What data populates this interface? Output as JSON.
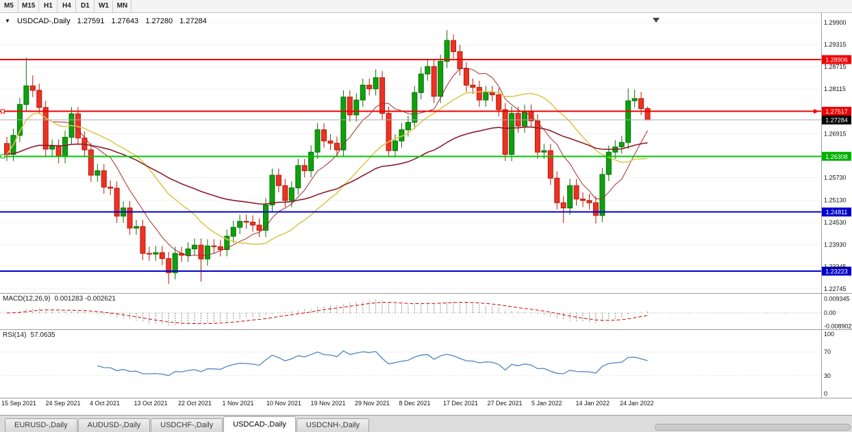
{
  "toolbar": {
    "timeframes": [
      "M5",
      "M15",
      "H1",
      "H4",
      "D1",
      "W1",
      "MN"
    ]
  },
  "chart": {
    "symbol_label": "USDCAD-,Daily",
    "ohlc": {
      "open": "1.27591",
      "high": "1.27643",
      "low": "1.27280",
      "close": "1.27284"
    }
  },
  "indicators": {
    "macd": {
      "label": "MACD(12,26,9)",
      "values": "0.001283 -0.002621"
    },
    "rsi": {
      "label": "RSI(14)",
      "value": "57.0635"
    }
  },
  "tabs": [
    {
      "label": "EURUSD-,Daily",
      "active": false
    },
    {
      "label": "AUDUSD-,Daily",
      "active": false
    },
    {
      "label": "USDCHF-,Daily",
      "active": false
    },
    {
      "label": "USDCAD-,Daily",
      "active": true
    },
    {
      "label": "USDCNH-,Daily",
      "active": false
    }
  ],
  "colors": {
    "candle_up": "#0FA00F",
    "candle_up_stroke": "#067006",
    "candle_down": "#EE3124",
    "candle_down_stroke": "#B51909",
    "macd_hist": "#8A8A8A",
    "macd_signal": "#CC0000",
    "rsi_line": "#4D84C4",
    "separator": "#9C9C9C",
    "gridline": "#F2F2F2"
  },
  "chart_data": {
    "type": "candlestick",
    "symbol": "USDCAD-",
    "timeframe": "Daily",
    "ohlc_fields": [
      "open",
      "high",
      "low",
      "close"
    ],
    "y_range": [
      1.2264,
      1.3016
    ],
    "ohlc": [
      [
        1.2665,
        1.2683,
        1.2618,
        1.2636
      ],
      [
        1.2636,
        1.2705,
        1.2618,
        1.2687
      ],
      [
        1.2687,
        1.2788,
        1.2669,
        1.277
      ],
      [
        1.277,
        1.2896,
        1.2752,
        1.282
      ],
      [
        1.282,
        1.2848,
        1.279,
        1.2808
      ],
      [
        1.2808,
        1.2826,
        1.2744,
        1.2762
      ],
      [
        1.2762,
        1.278,
        1.2632,
        1.265
      ],
      [
        1.265,
        1.2676,
        1.2632,
        1.2658
      ],
      [
        1.2658,
        1.2676,
        1.2612,
        1.263
      ],
      [
        1.263,
        1.27,
        1.2612,
        1.2682
      ],
      [
        1.2682,
        1.2763,
        1.2664,
        1.2745
      ],
      [
        1.2745,
        1.2763,
        1.2662,
        1.268
      ],
      [
        1.268,
        1.2698,
        1.263,
        1.2648
      ],
      [
        1.2648,
        1.2666,
        1.2562,
        1.258
      ],
      [
        1.258,
        1.261,
        1.2562,
        1.2592
      ],
      [
        1.2592,
        1.261,
        1.253,
        1.2548
      ],
      [
        1.2548,
        1.2566,
        1.2527,
        1.2545
      ],
      [
        1.2545,
        1.2563,
        1.2452,
        1.247
      ],
      [
        1.247,
        1.251,
        1.2452,
        1.2492
      ],
      [
        1.2492,
        1.251,
        1.242,
        1.2438
      ],
      [
        1.2438,
        1.246,
        1.242,
        1.2442
      ],
      [
        1.2442,
        1.246,
        1.2352,
        1.237
      ],
      [
        1.237,
        1.2388,
        1.235,
        1.2368
      ],
      [
        1.2368,
        1.239,
        1.235,
        1.2372
      ],
      [
        1.2372,
        1.239,
        1.2338,
        1.2356
      ],
      [
        1.2356,
        1.2374,
        1.2288,
        1.2318
      ],
      [
        1.2318,
        1.2388,
        1.23,
        1.237
      ],
      [
        1.237,
        1.2388,
        1.2347,
        1.2365
      ],
      [
        1.2365,
        1.24,
        1.2347,
        1.2382
      ],
      [
        1.2382,
        1.241,
        1.2364,
        1.2392
      ],
      [
        1.2392,
        1.241,
        1.2294,
        1.2355
      ],
      [
        1.2355,
        1.2408,
        1.2337,
        1.239
      ],
      [
        1.239,
        1.2408,
        1.237,
        1.2388
      ],
      [
        1.2388,
        1.2406,
        1.2362,
        1.238
      ],
      [
        1.238,
        1.2434,
        1.2362,
        1.2416
      ],
      [
        1.2416,
        1.2458,
        1.2398,
        1.244
      ],
      [
        1.244,
        1.2474,
        1.2422,
        1.2456
      ],
      [
        1.2456,
        1.2474,
        1.2436,
        1.2454
      ],
      [
        1.2454,
        1.2472,
        1.2428,
        1.2446
      ],
      [
        1.2446,
        1.2464,
        1.2414,
        1.2432
      ],
      [
        1.2432,
        1.2518,
        1.2414,
        1.25
      ],
      [
        1.25,
        1.2598,
        1.2482,
        1.258
      ],
      [
        1.258,
        1.2598,
        1.2534,
        1.2552
      ],
      [
        1.2552,
        1.257,
        1.2494,
        1.2512
      ],
      [
        1.2512,
        1.2564,
        1.2494,
        1.2546
      ],
      [
        1.2546,
        1.2624,
        1.2528,
        1.2606
      ],
      [
        1.2606,
        1.2624,
        1.2574,
        1.2592
      ],
      [
        1.2592,
        1.266,
        1.2574,
        1.2642
      ],
      [
        1.2642,
        1.272,
        1.2624,
        1.2702
      ],
      [
        1.2702,
        1.272,
        1.2654,
        1.2672
      ],
      [
        1.2672,
        1.269,
        1.2648,
        1.2666
      ],
      [
        1.2666,
        1.2684,
        1.263,
        1.2648
      ],
      [
        1.2648,
        1.2808,
        1.263,
        1.279
      ],
      [
        1.279,
        1.2808,
        1.2724,
        1.2742
      ],
      [
        1.2742,
        1.28,
        1.2724,
        1.2782
      ],
      [
        1.2782,
        1.284,
        1.2764,
        1.2822
      ],
      [
        1.2822,
        1.284,
        1.2794,
        1.2812
      ],
      [
        1.2812,
        1.2864,
        1.2794,
        1.2842
      ],
      [
        1.2842,
        1.286,
        1.2728,
        1.2746
      ],
      [
        1.2746,
        1.2764,
        1.2628,
        1.2646
      ],
      [
        1.2646,
        1.269,
        1.2628,
        1.2672
      ],
      [
        1.2672,
        1.272,
        1.2654,
        1.2702
      ],
      [
        1.2702,
        1.274,
        1.2684,
        1.2722
      ],
      [
        1.2722,
        1.282,
        1.2704,
        1.2802
      ],
      [
        1.2802,
        1.287,
        1.2784,
        1.2852
      ],
      [
        1.2852,
        1.2892,
        1.2834,
        1.2872
      ],
      [
        1.2872,
        1.289,
        1.2774,
        1.2792
      ],
      [
        1.2792,
        1.2904,
        1.2774,
        1.2886
      ],
      [
        1.2886,
        1.297,
        1.2868,
        1.2942
      ],
      [
        1.2942,
        1.2958,
        1.2894,
        1.2912
      ],
      [
        1.2912,
        1.293,
        1.2848,
        1.2866
      ],
      [
        1.2866,
        1.2884,
        1.2804,
        1.2822
      ],
      [
        1.2822,
        1.284,
        1.2798,
        1.2816
      ],
      [
        1.2816,
        1.2834,
        1.2764,
        1.2782
      ],
      [
        1.2782,
        1.282,
        1.2764,
        1.2802
      ],
      [
        1.2802,
        1.282,
        1.2778,
        1.2796
      ],
      [
        1.2796,
        1.2814,
        1.2738,
        1.2756
      ],
      [
        1.2756,
        1.2774,
        1.2618,
        1.2636
      ],
      [
        1.2636,
        1.2764,
        1.2618,
        1.2746
      ],
      [
        1.2746,
        1.2764,
        1.2694,
        1.2712
      ],
      [
        1.2712,
        1.277,
        1.2694,
        1.2752
      ],
      [
        1.2752,
        1.277,
        1.2708,
        1.2726
      ],
      [
        1.2726,
        1.2744,
        1.2624,
        1.2642
      ],
      [
        1.2642,
        1.2664,
        1.2624,
        1.2646
      ],
      [
        1.2646,
        1.2664,
        1.2554,
        1.2572
      ],
      [
        1.2572,
        1.259,
        1.2488,
        1.2506
      ],
      [
        1.2506,
        1.2524,
        1.2452,
        1.2492
      ],
      [
        1.2492,
        1.257,
        1.2474,
        1.2552
      ],
      [
        1.2552,
        1.257,
        1.2498,
        1.2516
      ],
      [
        1.2516,
        1.2534,
        1.2494,
        1.2512
      ],
      [
        1.2512,
        1.253,
        1.2488,
        1.2506
      ],
      [
        1.2506,
        1.2524,
        1.245,
        1.2472
      ],
      [
        1.2472,
        1.26,
        1.2454,
        1.2582
      ],
      [
        1.2582,
        1.266,
        1.2564,
        1.2642
      ],
      [
        1.2642,
        1.2674,
        1.2624,
        1.2656
      ],
      [
        1.2656,
        1.2686,
        1.2638,
        1.2668
      ],
      [
        1.2668,
        1.2813,
        1.265,
        1.278
      ],
      [
        1.278,
        1.281,
        1.2762,
        1.2786
      ],
      [
        1.2786,
        1.2804,
        1.2741,
        1.2759
      ],
      [
        1.27591,
        1.27643,
        1.2728,
        1.27284
      ]
    ],
    "last_values": {
      "open": 1.27591,
      "high": 1.27643,
      "low": 1.2728,
      "close": 1.27284
    },
    "moving_averages": [
      {
        "name": "ma-fast",
        "type": "sma",
        "period": 8,
        "color": "#A52A2A",
        "width": 1
      },
      {
        "name": "ma-mid",
        "type": "sma",
        "period": 20,
        "color": "#DCC84E",
        "width": 1.6
      },
      {
        "name": "ma-slow",
        "type": "ema",
        "period": 50,
        "color": "#8B1A2B",
        "width": 1.6
      }
    ],
    "hlines": [
      {
        "id": "resistance-upper",
        "price": 1.28906,
        "line_color": "#EE0000",
        "width": 2,
        "badge_color": "#EE0000",
        "badge_text": "1.28906",
        "anchor": false,
        "arrow": false
      },
      {
        "id": "resistance-key",
        "price": 1.27517,
        "line_color": "#EE0000",
        "width": 2,
        "badge_color": "#EE0000",
        "badge_text": "1.27517",
        "anchor": true,
        "arrow": true
      },
      {
        "id": "current-price",
        "price": 1.27284,
        "line_color": "#ABABAB",
        "width": 1,
        "badge_color": "#000000",
        "badge_text": "1.27284",
        "anchor": false,
        "arrow": false
      },
      {
        "id": "support-green",
        "price": 1.26308,
        "line_color": "#00C300",
        "width": 2,
        "badge_color": "#00B000",
        "badge_text": "1.26308",
        "anchor": true,
        "arrow": false
      },
      {
        "id": "support-blue-1",
        "price": 1.24811,
        "line_color": "#0000CC",
        "width": 2,
        "badge_color": "#0000CC",
        "badge_text": "1.24811",
        "anchor": false,
        "arrow": false
      },
      {
        "id": "support-blue-2",
        "price": 1.23223,
        "line_color": "#0000CC",
        "width": 2,
        "badge_color": "#0000CC",
        "badge_text": "1.23223",
        "anchor": false,
        "arrow": false
      }
    ],
    "price_axis_labels": [
      {
        "text": "1.29900",
        "value": 1.299
      },
      {
        "text": "1.29315",
        "value": 1.29315
      },
      {
        "text": "1.28715",
        "value": 1.28715
      },
      {
        "text": "1.28115",
        "value": 1.28115
      },
      {
        "text": "1.26915",
        "value": 1.26915
      },
      {
        "text": "1.25730",
        "value": 1.2573
      },
      {
        "text": "1.25130",
        "value": 1.2513
      },
      {
        "text": "1.24530",
        "value": 1.2453
      },
      {
        "text": "1.23930",
        "value": 1.2393
      },
      {
        "text": "1.23345",
        "value": 1.23345
      },
      {
        "text": "1.22745",
        "value": 1.22745
      }
    ],
    "macd": {
      "params": "12,26,9",
      "main": 0.001283,
      "signal": -0.002621,
      "axis": [
        {
          "text": "0.009345",
          "value": 0.009345
        },
        {
          "text": "0.00",
          "value": 0
        },
        {
          "text": "-0.008902",
          "value": -0.008902
        }
      ]
    },
    "rsi": {
      "params": "14",
      "value": 57.0635,
      "axis": [
        {
          "text": "100",
          "value": 100
        },
        {
          "text": "70",
          "value": 70
        },
        {
          "text": "30",
          "value": 30
        },
        {
          "text": "0",
          "value": 0
        }
      ]
    },
    "date_labels": [
      "15 Sep 2021",
      "24 Sep 2021",
      "4 Oct 2021",
      "13 Oct 2021",
      "22 Oct 2021",
      "1 Nov 2021",
      "10 Nov 2021",
      "19 Nov 2021",
      "29 Nov 2021",
      "8 Dec 2021",
      "17 Dec 2021",
      "27 Dec 2021",
      "5 Jan 2022",
      "14 Jan 2022",
      "24 Jan 2022"
    ]
  }
}
